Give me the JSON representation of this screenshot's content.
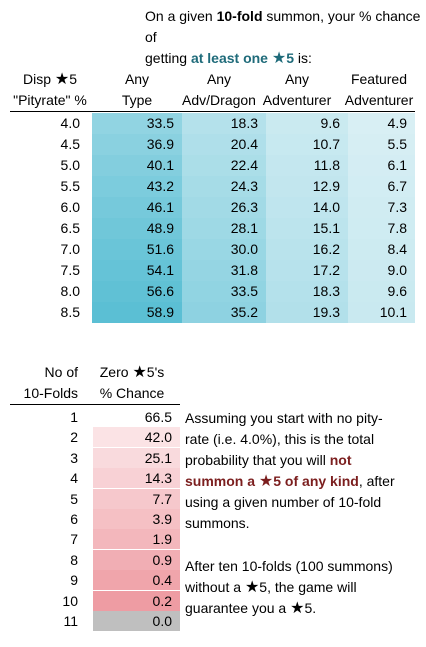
{
  "intro": {
    "p1": "On a given ",
    "p2": "10-fold",
    "p3": " summon, your % chance of",
    "p4": "getting ",
    "p5": "at least one ",
    "p6": "5",
    "p7": " is:"
  },
  "table1": {
    "headers": {
      "h0a": "Disp ",
      "h0star": "5",
      "h0b": "\"Pityrate\" %",
      "h1a": "Any",
      "h1b": "Type",
      "h2a": "Any",
      "h2b": "Adv/Dragon",
      "h3a": "Any",
      "h3b": "Adventurer",
      "h4a": "Featured",
      "h4b": "Adventurer"
    },
    "rows": [
      [
        "4.0",
        "33.5",
        "18.3",
        "9.6",
        "4.9"
      ],
      [
        "4.5",
        "36.9",
        "20.4",
        "10.7",
        "5.5"
      ],
      [
        "5.0",
        "40.1",
        "22.4",
        "11.8",
        "6.1"
      ],
      [
        "5.5",
        "43.2",
        "24.3",
        "12.9",
        "6.7"
      ],
      [
        "6.0",
        "46.1",
        "26.3",
        "14.0",
        "7.3"
      ],
      [
        "6.5",
        "48.9",
        "28.1",
        "15.1",
        "7.8"
      ],
      [
        "7.0",
        "51.6",
        "30.0",
        "16.2",
        "8.4"
      ],
      [
        "7.5",
        "54.1",
        "31.8",
        "17.2",
        "9.0"
      ],
      [
        "8.0",
        "56.6",
        "33.5",
        "18.3",
        "9.6"
      ],
      [
        "8.5",
        "58.9",
        "35.2",
        "19.3",
        "10.1"
      ]
    ]
  },
  "table2": {
    "headers": {
      "a1": "No of",
      "a2": "10-Folds",
      "b1": "Zero ",
      "bstar": "",
      "b1b": "5's",
      "b2": "% Chance"
    },
    "rows": [
      [
        "1",
        "66.5"
      ],
      [
        "2",
        "42.0"
      ],
      [
        "3",
        "25.1"
      ],
      [
        "4",
        "14.3"
      ],
      [
        "5",
        "7.7"
      ],
      [
        "6",
        "3.9"
      ],
      [
        "7",
        "1.9"
      ],
      [
        "8",
        "0.9"
      ],
      [
        "9",
        "0.4"
      ],
      [
        "10",
        "0.2"
      ],
      [
        "11",
        "0.0"
      ]
    ]
  },
  "note1": {
    "l1": "Assuming you start with no pity-",
    "l2": "rate (i.e. 4.0%), this is the total",
    "l3a": "probability that you will ",
    "l3b": "not",
    "l4a": "summon a ",
    "l4b": "5 of any kind",
    "l4c": ", after",
    "l5": "using a given number of 10-fold",
    "l6": "summons."
  },
  "note2": {
    "l1": "After ten 10-folds (100 summons)",
    "l2a": "without a ",
    "l2b": "5, the game will",
    "l3a": "guarantee you a ",
    "l3b": "5."
  },
  "colors": {
    "teal_light": "#d8eff4",
    "teal_dark": "#5bbfd4",
    "pink_light": "#fbe3e5",
    "pink_dark": "#ee9ca3",
    "grey": "#bfbfbf",
    "emphasis": "#7b1e1e"
  }
}
